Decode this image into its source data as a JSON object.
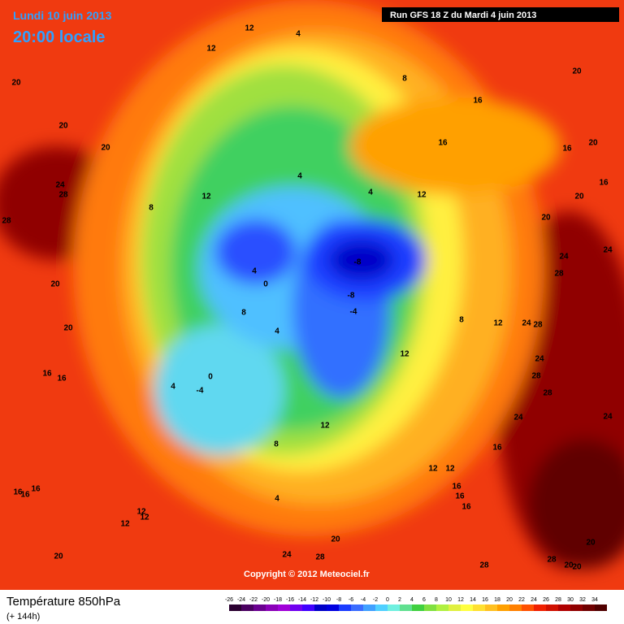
{
  "header": {
    "date": "Lundi 10 juin 2013",
    "time": "20:00 locale",
    "run": "Run GFS 18 Z du Mardi 4 juin 2013"
  },
  "footer": {
    "copyright": "Copyright © 2012 Meteociel.fr",
    "title": "Température 850hPa",
    "step": "(+ 144h)"
  },
  "colorbar": {
    "ticks": [
      -26,
      -24,
      -22,
      -20,
      -18,
      -16,
      -14,
      -12,
      -10,
      -8,
      -6,
      -4,
      -2,
      0,
      2,
      4,
      6,
      8,
      10,
      12,
      14,
      16,
      18,
      20,
      22,
      24,
      26,
      28,
      30,
      32,
      34
    ],
    "colors": [
      "#2a0030",
      "#4a0060",
      "#6a0090",
      "#8a00b8",
      "#a000d8",
      "#7000f0",
      "#4000ff",
      "#0000c8",
      "#0000e0",
      "#1a3cff",
      "#3a6cff",
      "#40a0ff",
      "#50d0ff",
      "#70f0e0",
      "#60e090",
      "#40d040",
      "#80e040",
      "#b0f040",
      "#e0f040",
      "#ffff40",
      "#ffe030",
      "#ffc020",
      "#ffa000",
      "#ff8000",
      "#ff5000",
      "#f02000",
      "#d01000",
      "#b00000",
      "#900000",
      "#700000",
      "#500000"
    ]
  },
  "map": {
    "labels": [
      "12",
      "4",
      "12",
      "8",
      "20",
      "20",
      "20",
      "20",
      "16",
      "16",
      "16",
      "20",
      "24",
      "28",
      "28",
      "12",
      "8",
      "4",
      "4",
      "12",
      "20",
      "16",
      "20",
      "24",
      "24",
      "28",
      "20",
      "20",
      "-8",
      "-8",
      "-4",
      "0",
      "4",
      "8",
      "4",
      "-4",
      "0",
      "4",
      "16",
      "16",
      "12",
      "8",
      "12",
      "24",
      "28",
      "24",
      "28",
      "28",
      "24",
      "24",
      "12",
      "12",
      "12",
      "8",
      "4",
      "16",
      "16",
      "16",
      "16",
      "16",
      "16",
      "12",
      "12",
      "12",
      "20",
      "24",
      "28",
      "20",
      "28",
      "28",
      "20",
      "20",
      "20",
      "16"
    ]
  }
}
